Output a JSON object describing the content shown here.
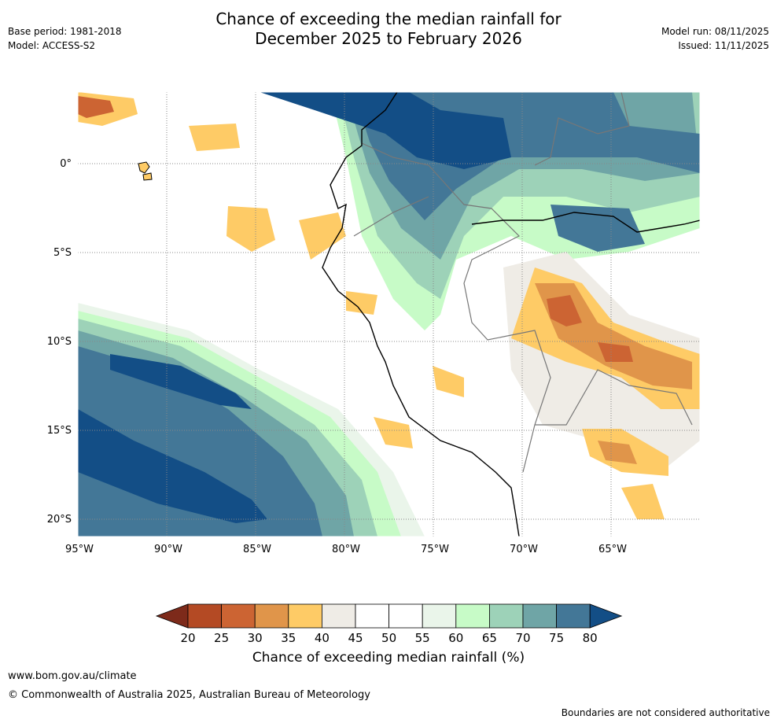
{
  "title_line1": "Chance of exceeding the median rainfall for",
  "title_line2": "December 2025 to February 2026",
  "base_period": "Base period: 1981-2018",
  "model": "Model: ACCESS-S2",
  "model_run": "Model run: 08/11/2025",
  "issued": "Issued: 11/11/2025",
  "lon_labels": [
    "95°W",
    "90°W",
    "85°W",
    "80°W",
    "75°W",
    "70°W",
    "65°W"
  ],
  "lat_labels": [
    "0°",
    "5°S",
    "10°S",
    "15°S",
    "20°S"
  ],
  "colorbar": {
    "ticks": [
      "20",
      "25",
      "30",
      "35",
      "40",
      "45",
      "50",
      "55",
      "60",
      "65",
      "70",
      "75",
      "80"
    ],
    "colors": [
      "#7d2a1a",
      "#b44a24",
      "#cc6433",
      "#e0954a",
      "#fecb66",
      "#efece6",
      "#ffffff",
      "#ffffff",
      "#eaf5ea",
      "#c7fbc7",
      "#9dd2b8",
      "#6fa5a6",
      "#437797",
      "#134e86"
    ],
    "label": "Chance of exceeding median rainfall (%)"
  },
  "website": "www.bom.gov.au/climate",
  "copyright": "© Commonwealth of Australia 2025, Australian Bureau of Meteorology",
  "disclaimer": "Boundaries are not considered authoritative"
}
